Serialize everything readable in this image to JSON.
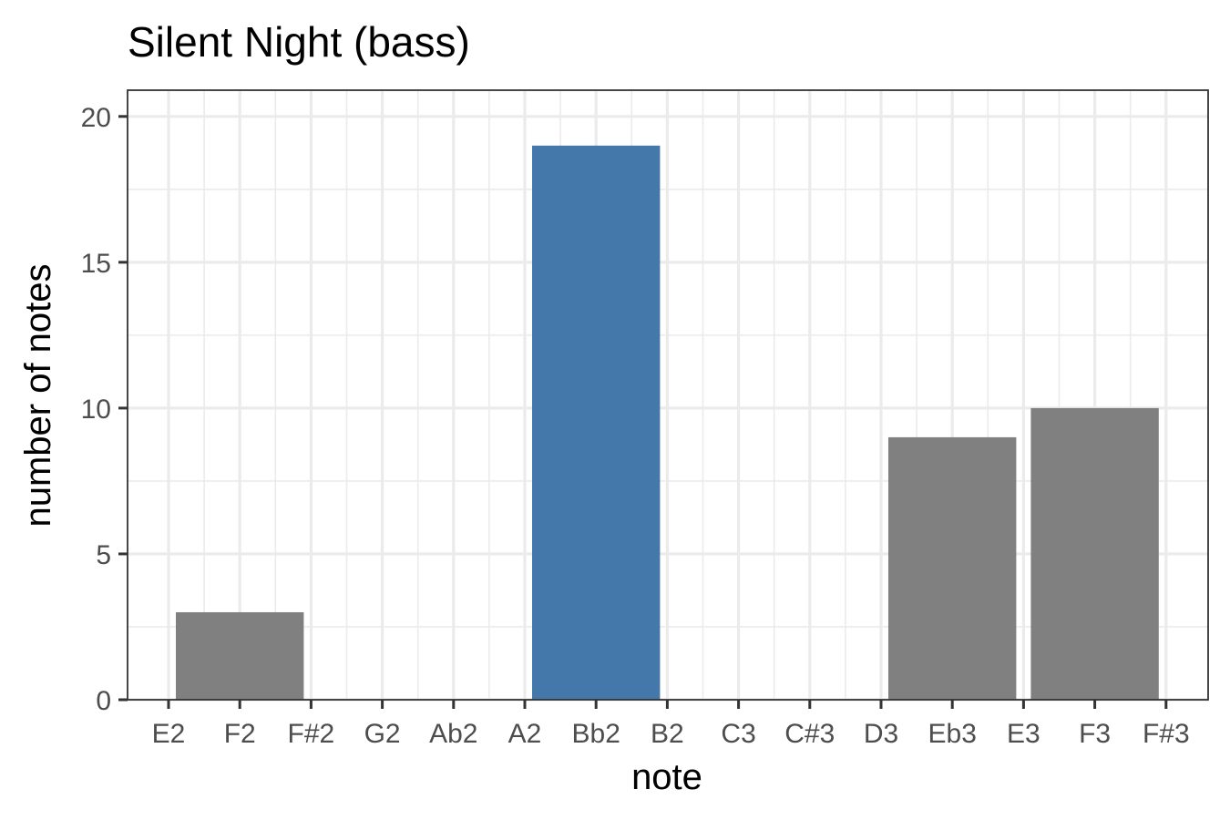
{
  "chart_data": {
    "type": "bar",
    "title": "Silent Night (bass)",
    "xlabel": "note",
    "ylabel": "number of notes",
    "ticks": [
      "E2",
      "F2",
      "F#2",
      "G2",
      "Ab2",
      "A2",
      "Bb2",
      "B2",
      "C3",
      "C#3",
      "D3",
      "Eb3",
      "E3",
      "F3",
      "F#3"
    ],
    "yticks": [
      0,
      5,
      10,
      15,
      20
    ],
    "ylim": [
      0,
      20.9
    ],
    "grid": true,
    "bars": [
      {
        "from": "E2",
        "to": "F#2",
        "value": 3,
        "color": "#808080"
      },
      {
        "from": "A2",
        "to": "B2",
        "value": 19,
        "color": "#4477AA"
      },
      {
        "from": "D3",
        "to": "E3",
        "value": 9,
        "color": "#808080"
      },
      {
        "from": "E3",
        "to": "F#3",
        "value": 10,
        "color": "#808080"
      }
    ]
  }
}
